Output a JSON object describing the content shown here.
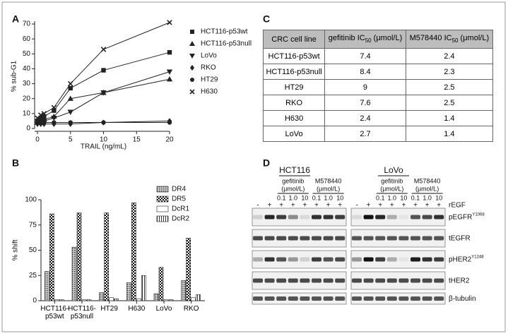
{
  "chart_data": [
    {
      "type": "line",
      "panel_label": "A",
      "x_label": "TRAIL (ng/mL)",
      "y_label": "% sub-G1",
      "x": [
        0,
        0.5,
        1,
        2.5,
        5,
        10,
        20
      ],
      "xlim": [
        0,
        20
      ],
      "xticks": [
        0,
        5,
        10,
        15,
        20
      ],
      "ylim": [
        0,
        70
      ],
      "yticks": [
        0,
        10,
        20,
        30,
        40,
        50,
        60,
        70
      ],
      "series": [
        {
          "name": "HCT116-p53wt",
          "marker": "square",
          "color": "#222",
          "values": [
            5,
            7,
            8,
            12,
            27,
            39,
            51
          ]
        },
        {
          "name": "HCT116-p53null",
          "marker": "triangle-up",
          "color": "#222",
          "values": [
            4,
            5,
            6,
            8,
            20,
            24,
            33
          ]
        },
        {
          "name": "LoVo",
          "marker": "triangle-down",
          "color": "#222",
          "values": [
            3,
            4,
            5,
            7,
            11,
            24,
            38
          ]
        },
        {
          "name": "RKO",
          "marker": "diamond",
          "color": "#222",
          "values": [
            3,
            3,
            3,
            3,
            3,
            4,
            5
          ]
        },
        {
          "name": "HT29",
          "marker": "circle",
          "color": "#222",
          "values": [
            4,
            4,
            4,
            4,
            4,
            4,
            4
          ]
        },
        {
          "name": "H630",
          "marker": "cross",
          "color": "#222",
          "values": [
            7,
            9,
            10,
            14,
            30,
            53,
            71
          ]
        }
      ]
    },
    {
      "type": "bar",
      "panel_label": "B",
      "y_label": "% shift",
      "categories": [
        "HCT116-p53wt",
        "HCT116-p53null",
        "HT29",
        "H630",
        "LoVo",
        "RKO"
      ],
      "ylim": [
        0,
        100
      ],
      "yticks": [
        0,
        25,
        50,
        75,
        100
      ],
      "series": [
        {
          "name": "DR4",
          "pattern": "dots",
          "color": "#555",
          "values": [
            29,
            53,
            8,
            18,
            7,
            20
          ]
        },
        {
          "name": "DR5",
          "pattern": "checker",
          "color": "#111",
          "values": [
            86,
            87,
            87,
            97,
            33,
            62
          ]
        },
        {
          "name": "DcR1",
          "pattern": "plain",
          "color": "#fff",
          "values": [
            1,
            1,
            3,
            2,
            1,
            3
          ]
        },
        {
          "name": "DcR2",
          "pattern": "vstripes",
          "color": "#333",
          "values": [
            1,
            1,
            2,
            25,
            1,
            6
          ]
        }
      ]
    }
  ],
  "table": {
    "panel_label": "C",
    "header": [
      {
        "text": "CRC cell line"
      },
      {
        "text": "gefitinib IC",
        "sub": "50",
        "unit": "(μmol/L)"
      },
      {
        "text": "M578440 IC",
        "sub": "50",
        "unit": "(μmol/L)"
      }
    ],
    "rows": [
      [
        "HCT116-p53wt",
        7.4,
        2.4
      ],
      [
        "HCT116-p53null",
        8.4,
        2.3
      ],
      [
        "HT29",
        9,
        2.5
      ],
      [
        "RKO",
        7.6,
        2.5
      ],
      [
        "H630",
        2.4,
        1.4
      ],
      [
        "LoVo",
        2.7,
        1.4
      ]
    ]
  },
  "blot": {
    "panel_label": "D",
    "groups": [
      {
        "name": "HCT116",
        "drugs": [
          {
            "name": "gefitinib",
            "unit": "(μmol/L)",
            "doses": [
              "0.1",
              "1.0",
              "10"
            ]
          },
          {
            "name": "M578440",
            "unit": "(μmol/L)",
            "doses": [
              "0.1",
              "1.0",
              "10"
            ]
          }
        ]
      },
      {
        "name": "LoVo",
        "drugs": [
          {
            "name": "gefitinib",
            "unit": "(μmol/L)",
            "doses": [
              "0.1",
              "1.0",
              "10"
            ]
          },
          {
            "name": "M578440",
            "unit": "(μmol/L)",
            "doses": [
              "0.1",
              "1.0",
              "10"
            ]
          }
        ]
      }
    ],
    "egf_label": "rEGF",
    "egf_signs": [
      "-",
      "+",
      "+",
      "+",
      "+",
      "+",
      "+",
      "+"
    ],
    "rows": [
      {
        "text": "pEGFR",
        "sup": "Y1068"
      },
      {
        "text": "tEGFR"
      },
      {
        "text": "pHER2",
        "sup": "Y1248"
      },
      {
        "text": "tHER2"
      },
      {
        "text": "β-tubulin"
      }
    ]
  }
}
